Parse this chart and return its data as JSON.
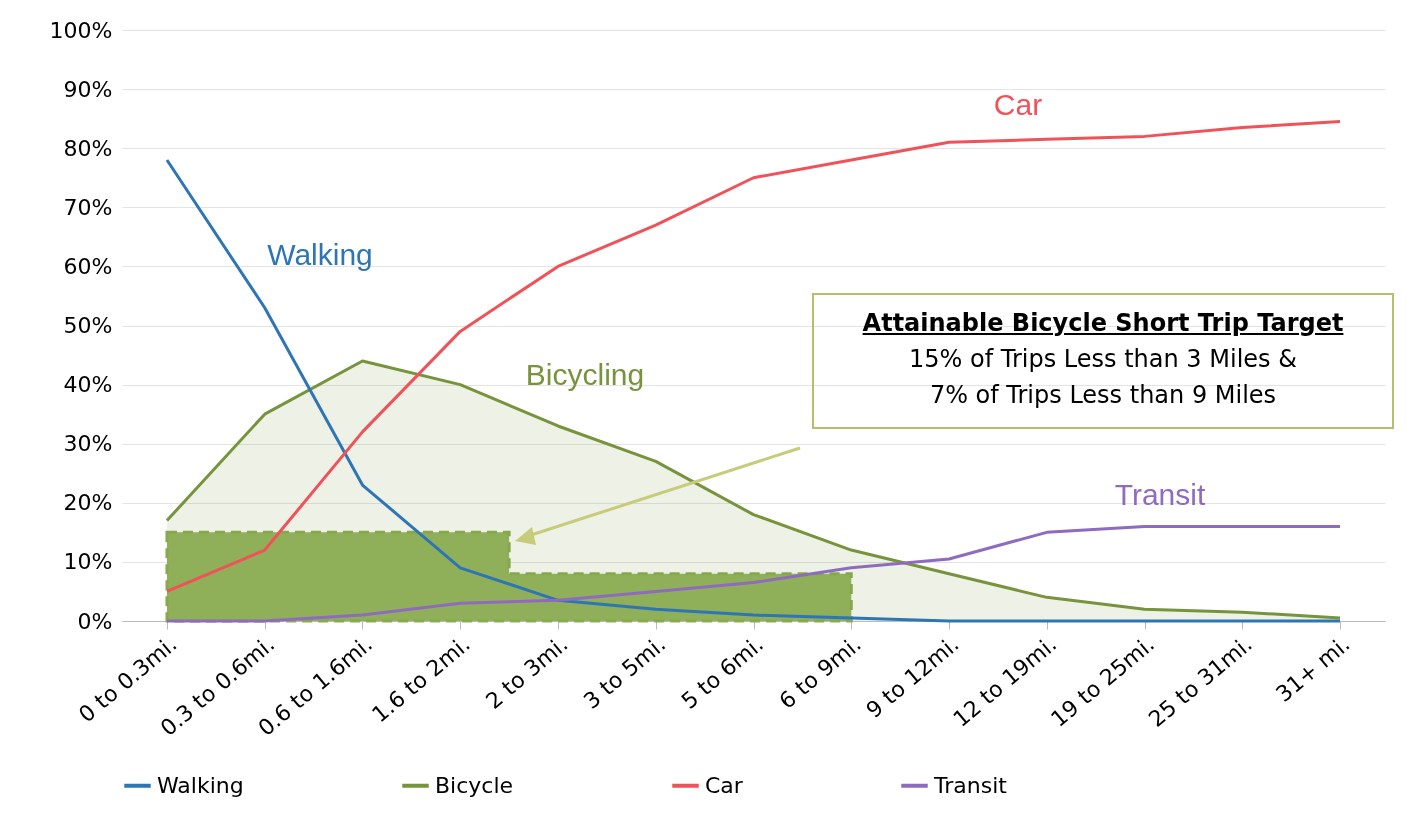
{
  "chart_data": {
    "type": "line",
    "categories": [
      "0 to 0.3mi.",
      "0.3 to 0.6mi.",
      "0.6 to 1.6mi.",
      "1.6 to 2mi.",
      "2 to 3mi.",
      "3 to 5mi.",
      "5 to 6mi.",
      "6 to 9mi.",
      "9 to 12mi.",
      "12 to 19mi.",
      "19 to 25mi.",
      "25 to 31mi.",
      "31+ mi."
    ],
    "series": [
      {
        "name": "Walking",
        "color": "#2e75b6",
        "values": [
          78,
          53,
          23,
          9,
          3.5,
          2,
          1,
          0.5,
          0,
          0,
          0,
          0,
          0
        ]
      },
      {
        "name": "Bicycle",
        "type": "area",
        "color": "#77933c",
        "values": [
          17,
          35,
          44,
          40,
          33,
          27,
          18,
          12,
          8,
          4,
          2,
          1.5,
          0.5
        ]
      },
      {
        "name": "Car",
        "color": "#f0525a",
        "values": [
          5,
          12,
          32,
          49,
          60,
          67,
          75,
          78,
          81,
          81.5,
          82,
          83.5,
          84.5
        ]
      },
      {
        "name": "Transit",
        "color": "#8e6bbf",
        "values": [
          0,
          0,
          1,
          3,
          3.5,
          5,
          6.5,
          9,
          10.5,
          15,
          16,
          16,
          16
        ]
      },
      {
        "type": "area",
        "color": "#8aac4c",
        "line_style": "dashed",
        "values": [
          15,
          15,
          15,
          15,
          8,
          8,
          8,
          8,
          null,
          null,
          null,
          null,
          null
        ]
      }
    ],
    "ylim": [
      0,
      100
    ],
    "yticks": [
      {
        "value": 0,
        "label": "0%"
      },
      {
        "value": 10,
        "label": "10%"
      },
      {
        "value": 20,
        "label": "20%"
      },
      {
        "value": 30,
        "label": "30%"
      },
      {
        "value": 40,
        "label": "40%"
      },
      {
        "value": 50,
        "label": "50%"
      },
      {
        "value": 60,
        "label": "60%"
      },
      {
        "value": 70,
        "label": "70%"
      },
      {
        "value": 80,
        "label": "80%"
      },
      {
        "value": 90,
        "label": "90%"
      },
      {
        "value": 100,
        "label": "100%"
      }
    ],
    "grid": "y",
    "legend": "bottom",
    "annotations": [
      "Walking",
      "Bicycling",
      "Car",
      "Transit",
      "Attainable Bicycle Short Trip Target",
      "15% of Trips Less than 3 Miles &",
      "7% of Trips Less than 9 Miles"
    ]
  }
}
